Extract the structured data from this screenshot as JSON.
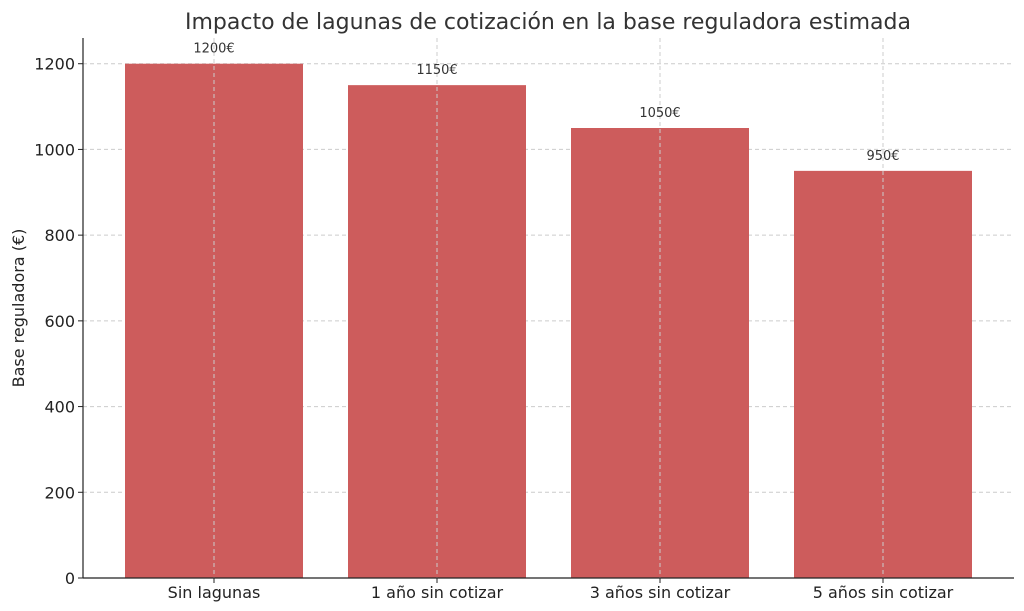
{
  "chart_data": {
    "type": "bar",
    "title": "Impacto de lagunas de cotización en la base reguladora estimada",
    "xlabel": "",
    "ylabel": "Base reguladora (€)",
    "categories": [
      "Sin lagunas",
      "1 año sin cotizar",
      "3 años sin cotizar",
      "5 años sin cotizar"
    ],
    "values": [
      1200,
      1150,
      1050,
      950
    ],
    "data_labels": [
      "1200€",
      "1150€",
      "1050€",
      "950€"
    ],
    "ylim": [
      0,
      1260
    ],
    "yticks": [
      0,
      200,
      400,
      600,
      800,
      1000,
      1200
    ],
    "grid": true,
    "bar_color": "#cd5c5c"
  }
}
